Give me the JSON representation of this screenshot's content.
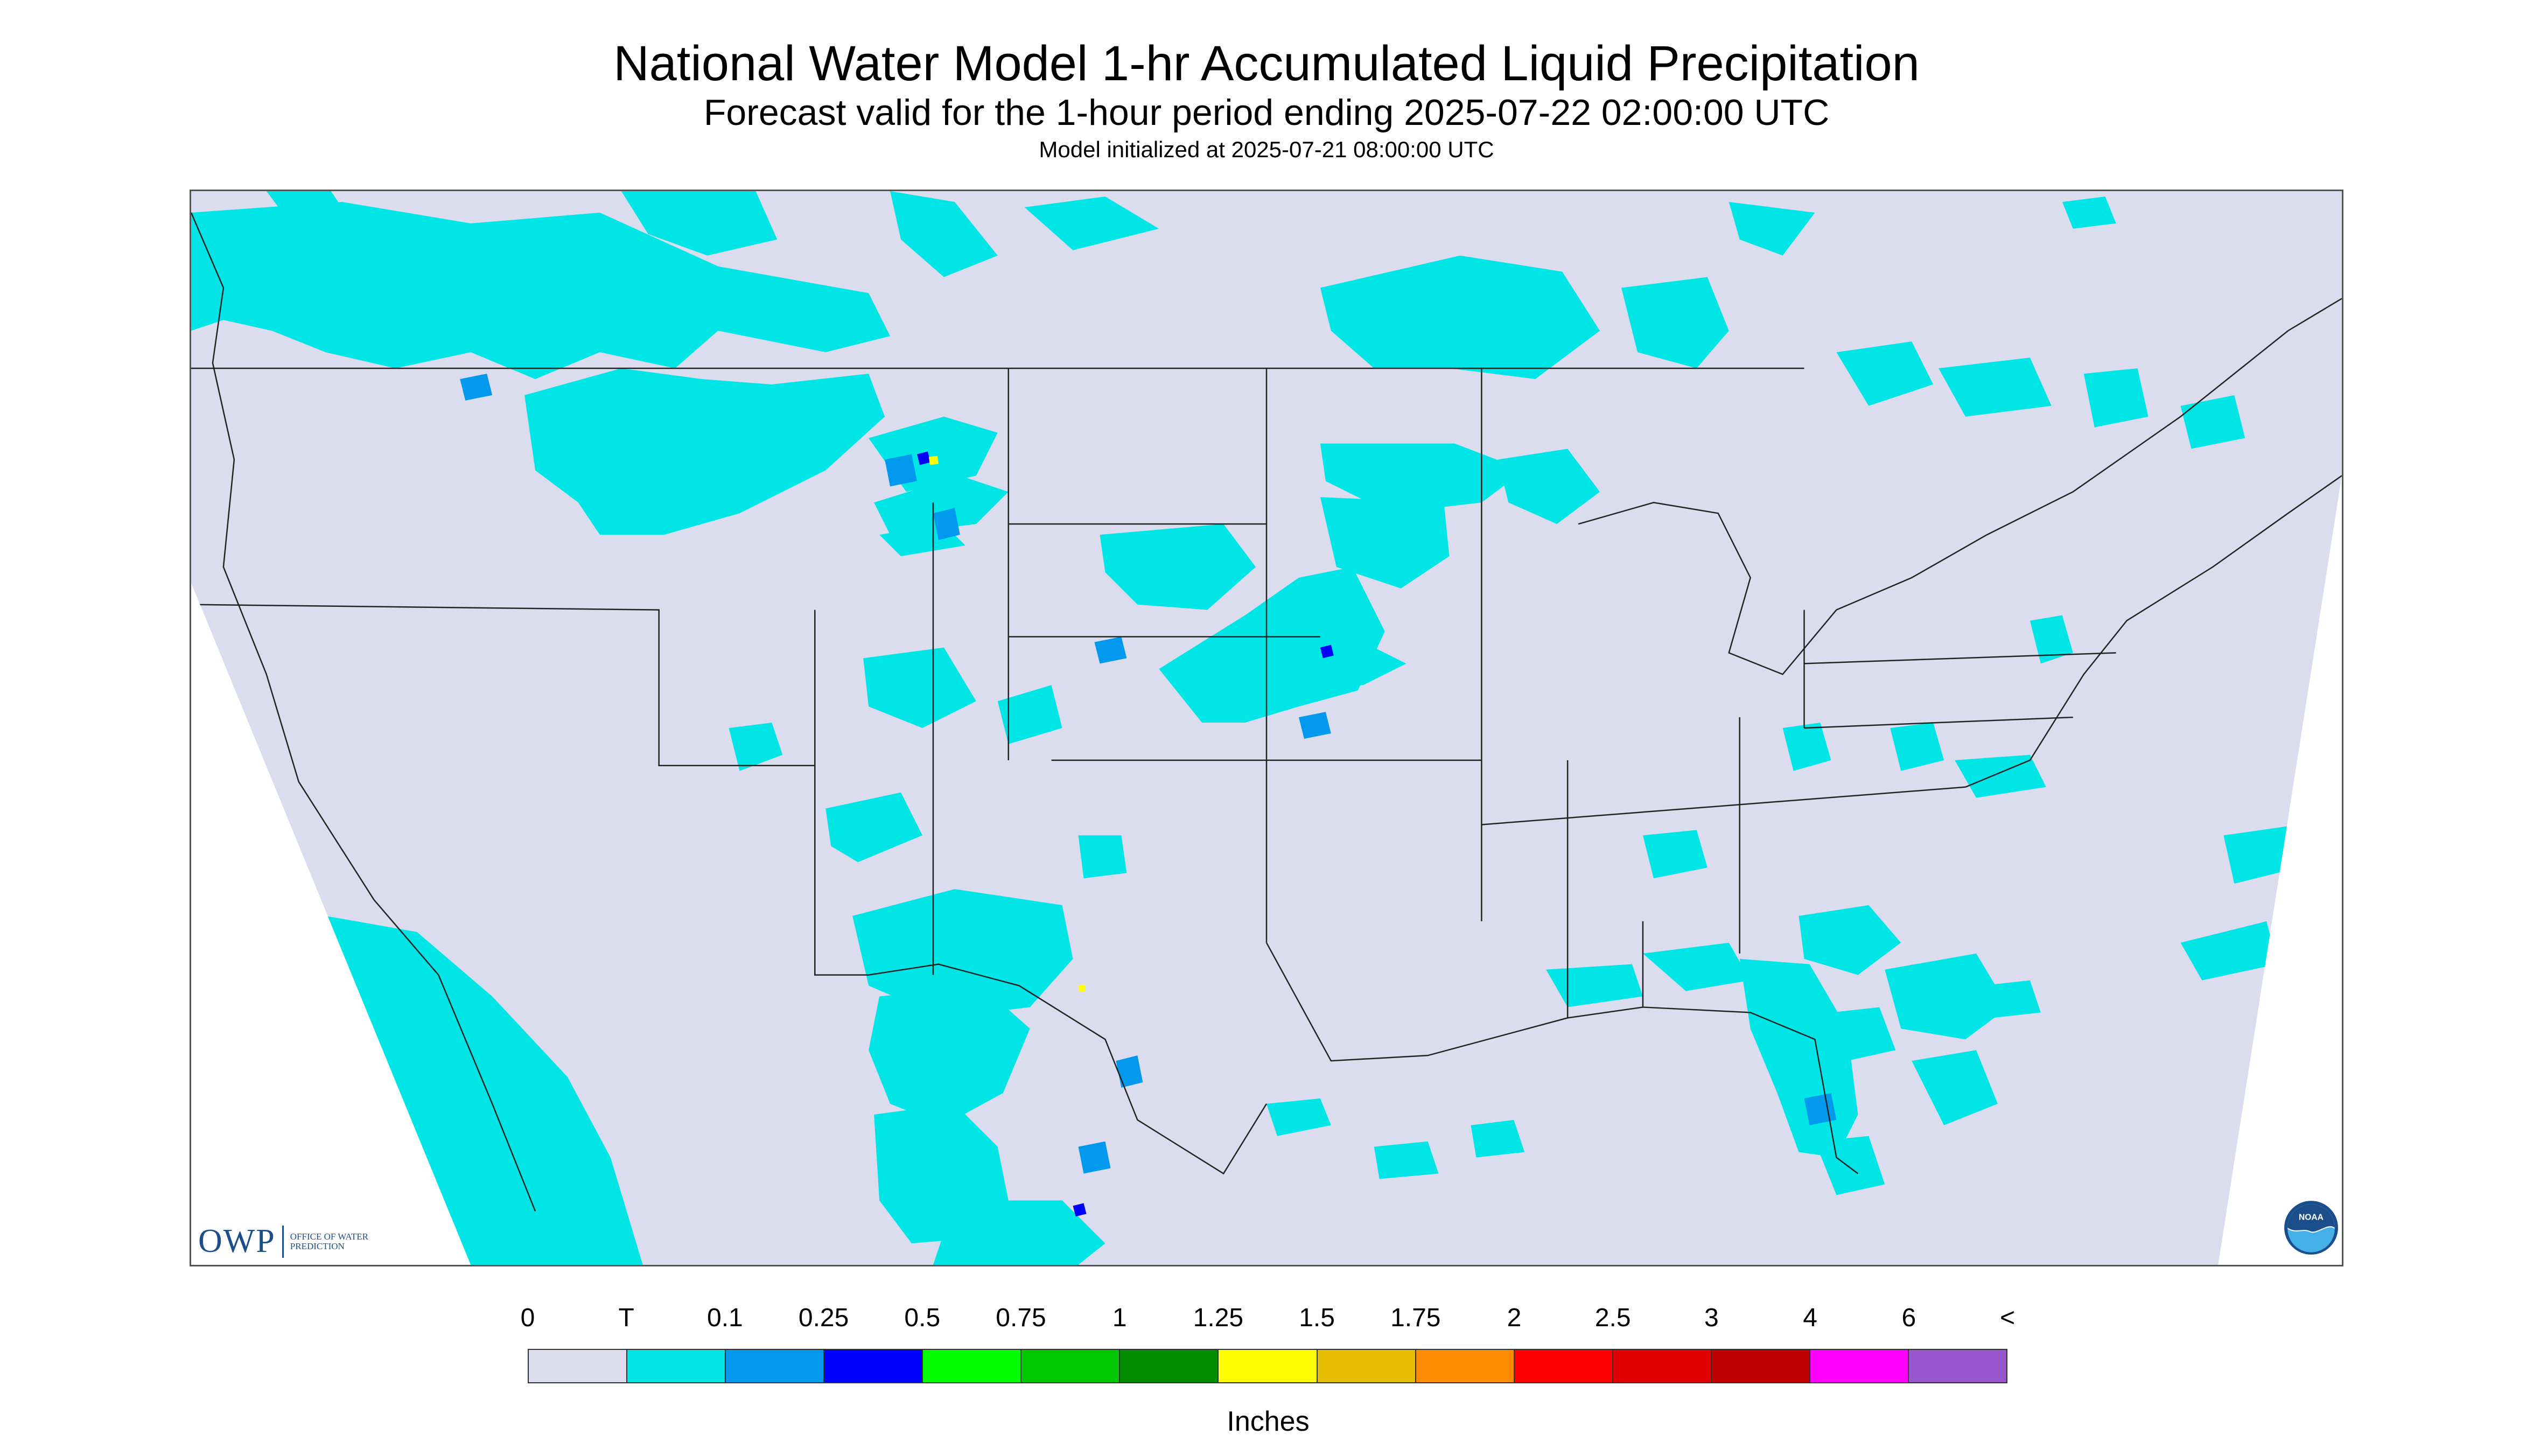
{
  "title": "National Water Model 1-hr Accumulated Liquid Precipitation",
  "subtitle": "Forecast valid for the 1-hour period ending 2025-07-22 02:00:00 UTC",
  "init_note": "Model initialized at 2025-07-21 08:00:00 UTC",
  "map": {
    "region": "Contiguous United States",
    "background_color": "#dcdcef",
    "outside_domain_color": "#ffffff",
    "boundary_color": "#000000",
    "state_line_color": "#333333"
  },
  "legend": {
    "labels": [
      "0",
      "T",
      "0.1",
      "0.25",
      "0.5",
      "0.75",
      "1",
      "1.25",
      "1.5",
      "1.75",
      "2",
      "2.5",
      "3",
      "4",
      "6",
      "<"
    ],
    "colors": [
      "#dcdcef",
      "#00e6e6",
      "#0099ee",
      "#0000ff",
      "#00ff00",
      "#00c800",
      "#008c00",
      "#ffff00",
      "#e6c000",
      "#ff8c00",
      "#ff0000",
      "#e00000",
      "#c00000",
      "#ff00ff",
      "#9955cc"
    ],
    "units": "Inches"
  },
  "logos": {
    "owp_mark": "OWP",
    "owp_text": "OFFICE OF WATER PREDICTION",
    "noaa_text": "NOAA"
  }
}
